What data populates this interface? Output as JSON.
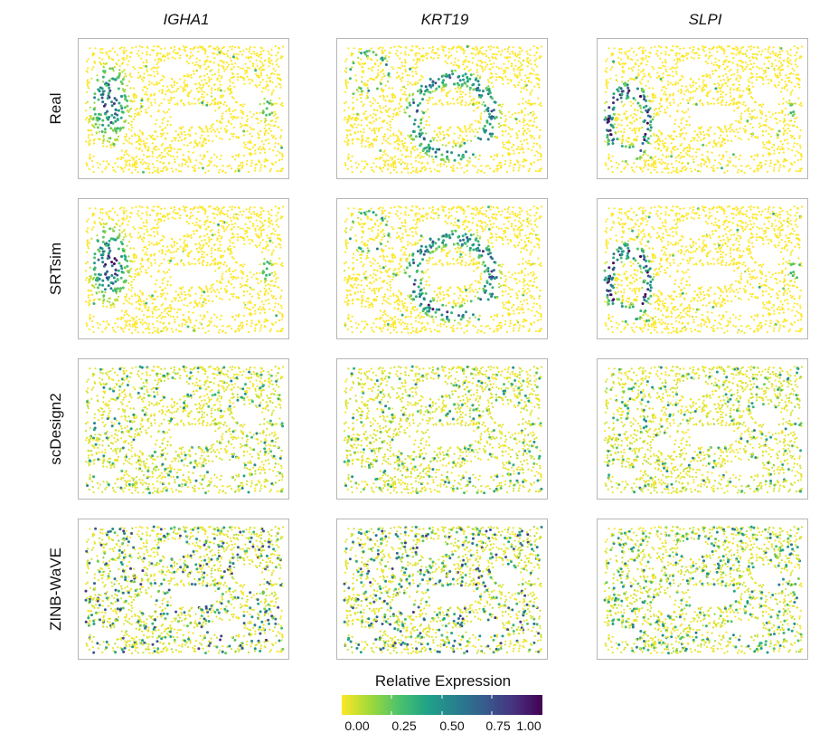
{
  "chart_data": {
    "type": "scatter",
    "title": "",
    "columns": [
      "IGHA1",
      "KRT19",
      "SLPI"
    ],
    "rows": [
      "Real",
      "SRTsim",
      "scDesign2",
      "ZINB-WaVE"
    ],
    "legend": {
      "title": "Relative Expression",
      "ticks": [
        "0.00",
        "0.25",
        "0.50",
        "0.75",
        "1.00"
      ],
      "colors": [
        "#fde725",
        "#a0da39",
        "#4ac16d",
        "#1fa187",
        "#277f8e",
        "#365c8d",
        "#46327e",
        "#440154"
      ],
      "placement": "bottom"
    },
    "panels": [
      {
        "row": "Real",
        "column": "IGHA1",
        "description": "mostly low expression with high-expression cluster on left"
      },
      {
        "row": "Real",
        "column": "KRT19",
        "description": "ring-like structures of moderate expression"
      },
      {
        "row": "Real",
        "column": "SLPI",
        "description": "high-expression ring on left"
      },
      {
        "row": "SRTsim",
        "column": "IGHA1",
        "description": "left cluster reproduced"
      },
      {
        "row": "SRTsim",
        "column": "KRT19",
        "description": "ring structures reproduced"
      },
      {
        "row": "SRTsim",
        "column": "SLPI",
        "description": "left ring reproduced strongly"
      },
      {
        "row": "scDesign2",
        "column": "IGHA1",
        "description": "diffuse, spatially uniform"
      },
      {
        "row": "scDesign2",
        "column": "KRT19",
        "description": "diffuse, spatially uniform"
      },
      {
        "row": "scDesign2",
        "column": "SLPI",
        "description": "diffuse, spatially uniform"
      },
      {
        "row": "ZINB-WaVE",
        "column": "IGHA1",
        "description": "noisy, many random high points"
      },
      {
        "row": "ZINB-WaVE",
        "column": "KRT19",
        "description": "noisy, many random high points"
      },
      {
        "row": "ZINB-WaVE",
        "column": "SLPI",
        "description": "noisy, scattered high points"
      }
    ]
  }
}
